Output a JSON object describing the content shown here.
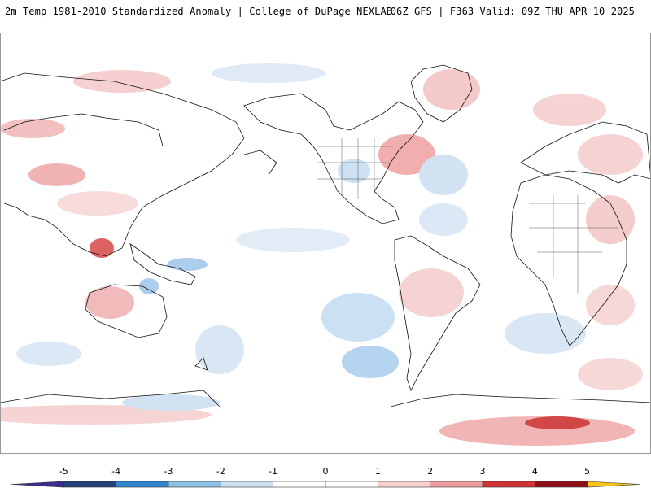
{
  "header": {
    "title_left": "2m Temp 1981-2010 Standardized Anomaly | College of DuPage NEXLAB",
    "title_right": "06Z GFS | F363 Valid: 09Z THU APR 10 2025"
  },
  "colorbar": {
    "ticks": [
      "-5",
      "-4",
      "-3",
      "-2",
      "-1",
      "0",
      "1",
      "2",
      "3",
      "4",
      "5"
    ],
    "colors": [
      "#3a2e8c",
      "#23417a",
      "#2f86cc",
      "#8ec0e6",
      "#cfe0f2",
      "#ffffff",
      "#ffffff",
      "#f7cfcf",
      "#eb9c9c",
      "#d23434",
      "#8e0f1a",
      "#f5c518"
    ]
  }
}
